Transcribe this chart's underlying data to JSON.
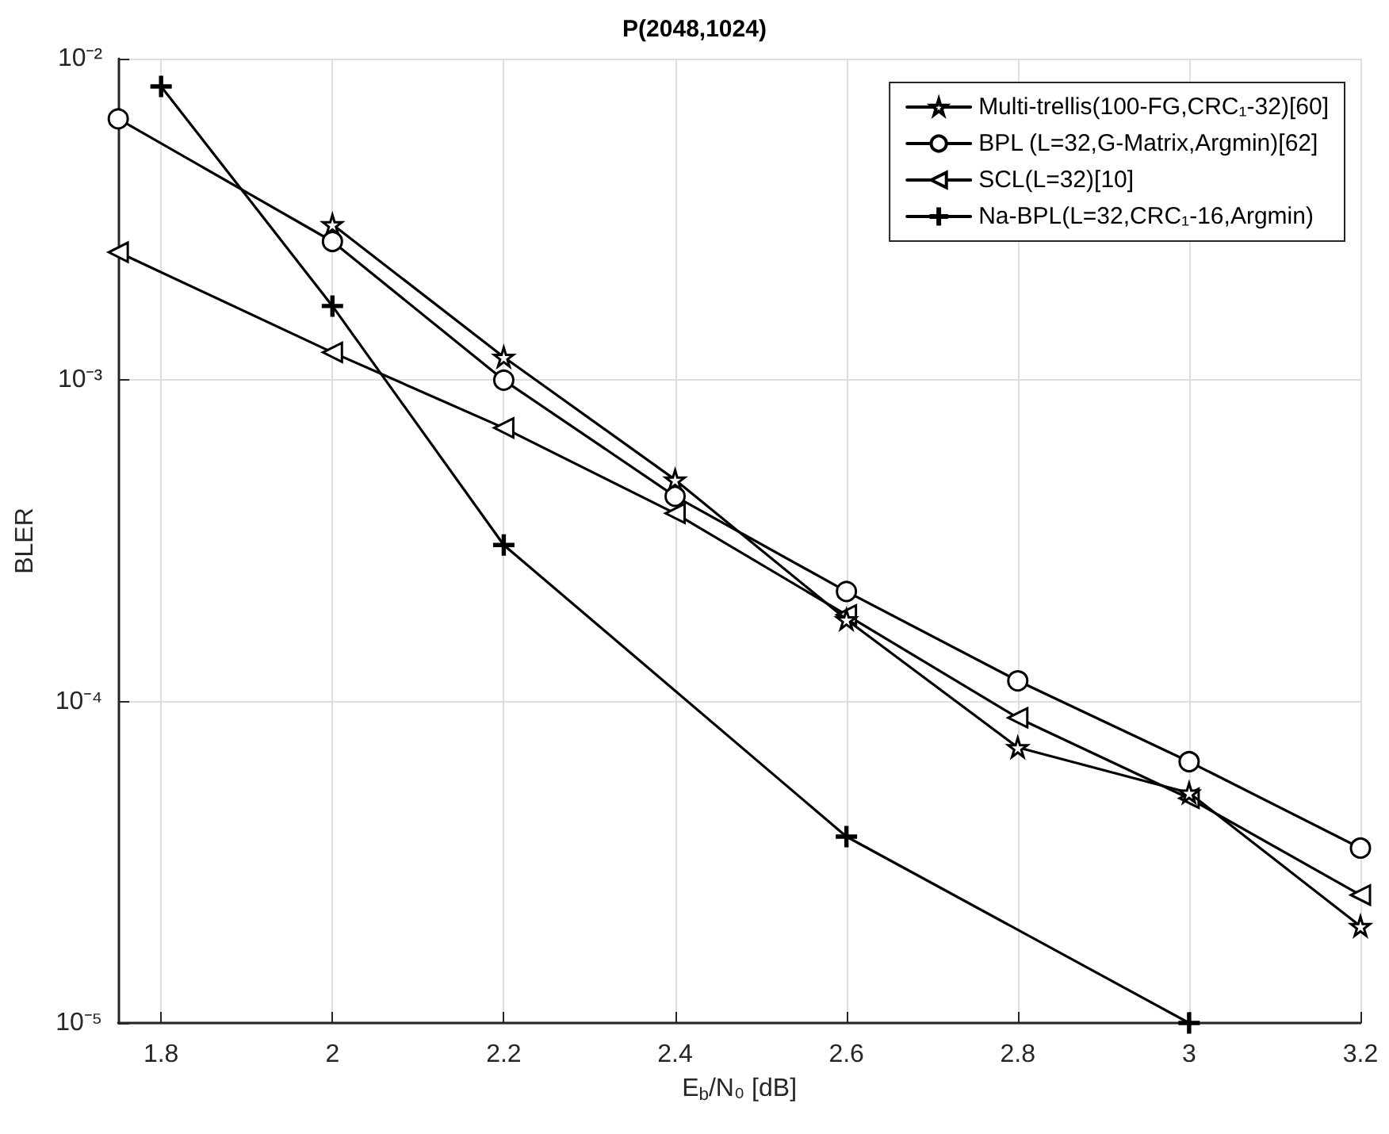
{
  "chart_data": {
    "type": "line",
    "title": "P(2048,1024)",
    "xlabel": "E$_{b}$/N₀ [dB]",
    "ylabel": "BLER",
    "series": [
      {
        "name": "Multi-trellis(100-FG,CRC₁-32)[60]",
        "color": "#000000",
        "marker": "star",
        "x": [
          2,
          2.2,
          2.4,
          2.6,
          2.8,
          3,
          3.2
        ],
        "values": [
          0.00305,
          0.00118,
          0.00049,
          0.00018,
          7.2e-05,
          5.2e-05,
          2e-05
        ]
      },
      {
        "name": "BPL (L=32,G-Matrix,Argmin)[62]",
        "color": "#000000",
        "marker": "circle",
        "x": [
          1.75,
          2,
          2.2,
          2.4,
          2.6,
          2.8,
          3,
          3.2
        ],
        "values": [
          0.0065,
          0.0027,
          0.001,
          0.000435,
          0.00022,
          0.000116,
          6.5e-05,
          3.5e-05
        ]
      },
      {
        "name": "SCL(L=32)[10]",
        "color": "#000000",
        "marker": "triangle",
        "x": [
          1.75,
          2,
          2.2,
          2.4,
          2.6,
          2.8,
          3,
          3.2
        ],
        "values": [
          0.0025,
          0.00122,
          0.00071,
          0.000385,
          0.000186,
          8.9e-05,
          5e-05,
          2.5e-05
        ]
      },
      {
        "name": "Na-BPL(L=32,CRC₁-16,Argmin)",
        "color": "#000000",
        "marker": "cross",
        "x": [
          1.8,
          2,
          2.2,
          2.6,
          3
        ],
        "values": [
          0.0082,
          0.0017,
          0.000307,
          3.8e-05,
          1e-05
        ]
      }
    ],
    "xlim": [
      1.75,
      3.2
    ],
    "xticks": [
      1.8,
      2,
      2.2,
      2.4,
      2.6,
      2.8,
      3,
      3.2
    ],
    "ylim": [
      1e-05,
      0.01
    ],
    "log": "y",
    "yticks": [
      {
        "value": 1e-05,
        "label": "10⁻⁵"
      },
      {
        "value": 0.0001,
        "label": "10⁻⁴"
      },
      {
        "value": 0.001,
        "label": "10⁻³"
      },
      {
        "value": 0.01,
        "label": "10⁻²"
      }
    ],
    "grid": true,
    "legend": "top right",
    "line_style": "solid"
  }
}
